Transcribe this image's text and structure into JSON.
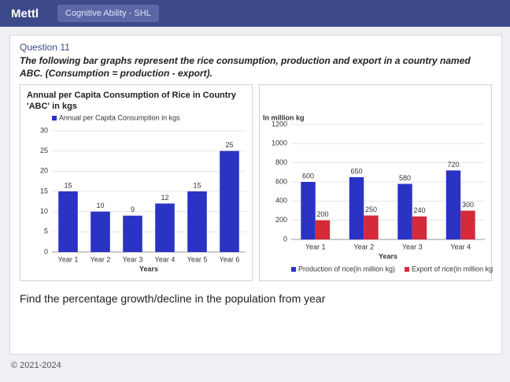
{
  "app": {
    "brand": "Mettl",
    "tab": "Cognitive Ability - SHL"
  },
  "question": {
    "number": "Question 11",
    "intro": "The following bar graphs represent the rice consumption, production and export in a country named ABC. (Consumption = production - export).",
    "prompt": "Find the percentage growth/decline in the population from year"
  },
  "chart_data": [
    {
      "type": "bar",
      "title": "Annual per Capita Consumption of Rice in Country 'ABC' in kgs",
      "x_label": "Years",
      "categories": [
        "Year 1",
        "Year 2",
        "Year 3",
        "Year 4",
        "Year 5",
        "Year 6"
      ],
      "series": [
        {
          "name": "Annual per Capita Consumption in kgs",
          "color": "#2a33c4",
          "values": [
            15,
            10,
            9,
            12,
            15,
            25
          ]
        }
      ],
      "ylim": [
        0,
        30
      ],
      "yticks": [
        0,
        5,
        10,
        15,
        20,
        25,
        30
      ],
      "legend": "top"
    },
    {
      "type": "bar",
      "y_label": "In million kg",
      "x_label": "Years",
      "categories": [
        "Year 1",
        "Year 2",
        "Year 3",
        "Year 4"
      ],
      "series": [
        {
          "name": "Production of rice(in million kg)",
          "color": "#2a33c4",
          "values": [
            600,
            650,
            580,
            720
          ]
        },
        {
          "name": "Export of rice(in million kg)",
          "color": "#d42a3a",
          "values": [
            200,
            250,
            240,
            300
          ]
        }
      ],
      "ylim": [
        0,
        1200
      ],
      "yticks": [
        0,
        200,
        400,
        600,
        800,
        1000,
        1200
      ],
      "legend": "bottom"
    }
  ],
  "footer": "© 2021-2024"
}
